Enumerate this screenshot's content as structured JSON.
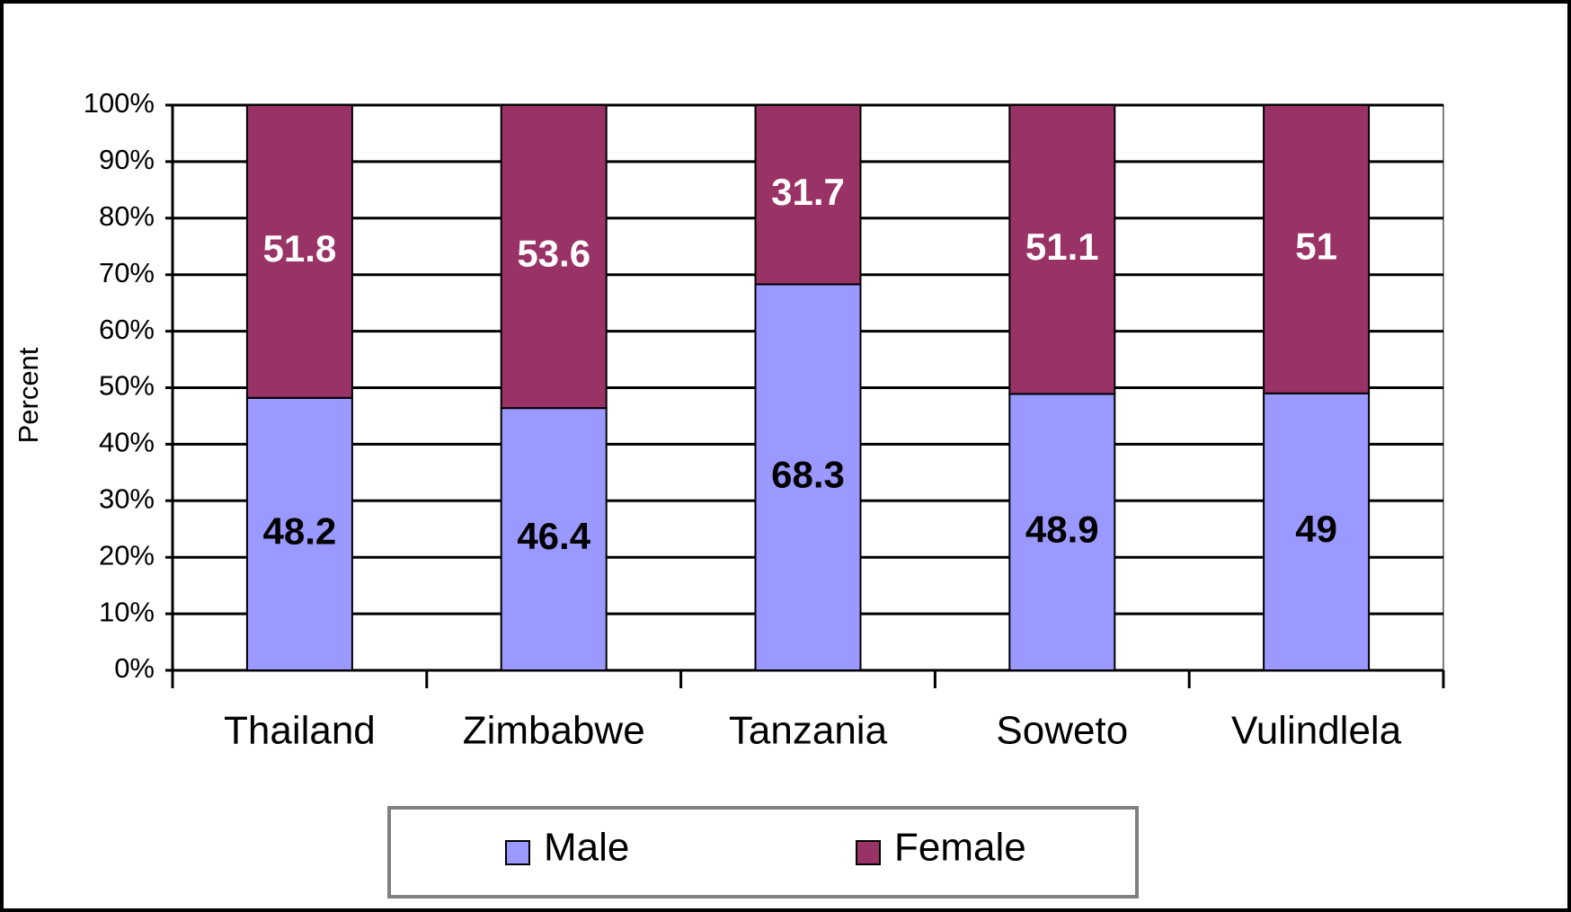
{
  "chart_data": {
    "type": "stacked_bar",
    "y_axis_label": "Percent",
    "categories": [
      "Thailand",
      "Zimbabwe",
      "Tanzania",
      "Soweto",
      "Vulindlela"
    ],
    "series": [
      {
        "name": "Male",
        "color": "#9999ff",
        "values": [
          48.2,
          46.4,
          68.3,
          48.9,
          49
        ]
      },
      {
        "name": "Female",
        "color": "#993366",
        "values": [
          51.8,
          53.6,
          31.7,
          51.1,
          51
        ]
      }
    ],
    "ylim": [
      0,
      100
    ],
    "yticks": [
      {
        "value": 0,
        "label": "0%"
      },
      {
        "value": 10,
        "label": "10%"
      },
      {
        "value": 20,
        "label": "20%"
      },
      {
        "value": 30,
        "label": "30%"
      },
      {
        "value": 40,
        "label": "40%"
      },
      {
        "value": 50,
        "label": "50%"
      },
      {
        "value": 60,
        "label": "60%"
      },
      {
        "value": 70,
        "label": "70%"
      },
      {
        "value": 80,
        "label": "80%"
      },
      {
        "value": 90,
        "label": "90%"
      },
      {
        "value": 100,
        "label": "100%"
      }
    ],
    "grid": true,
    "legend": "bottom"
  }
}
